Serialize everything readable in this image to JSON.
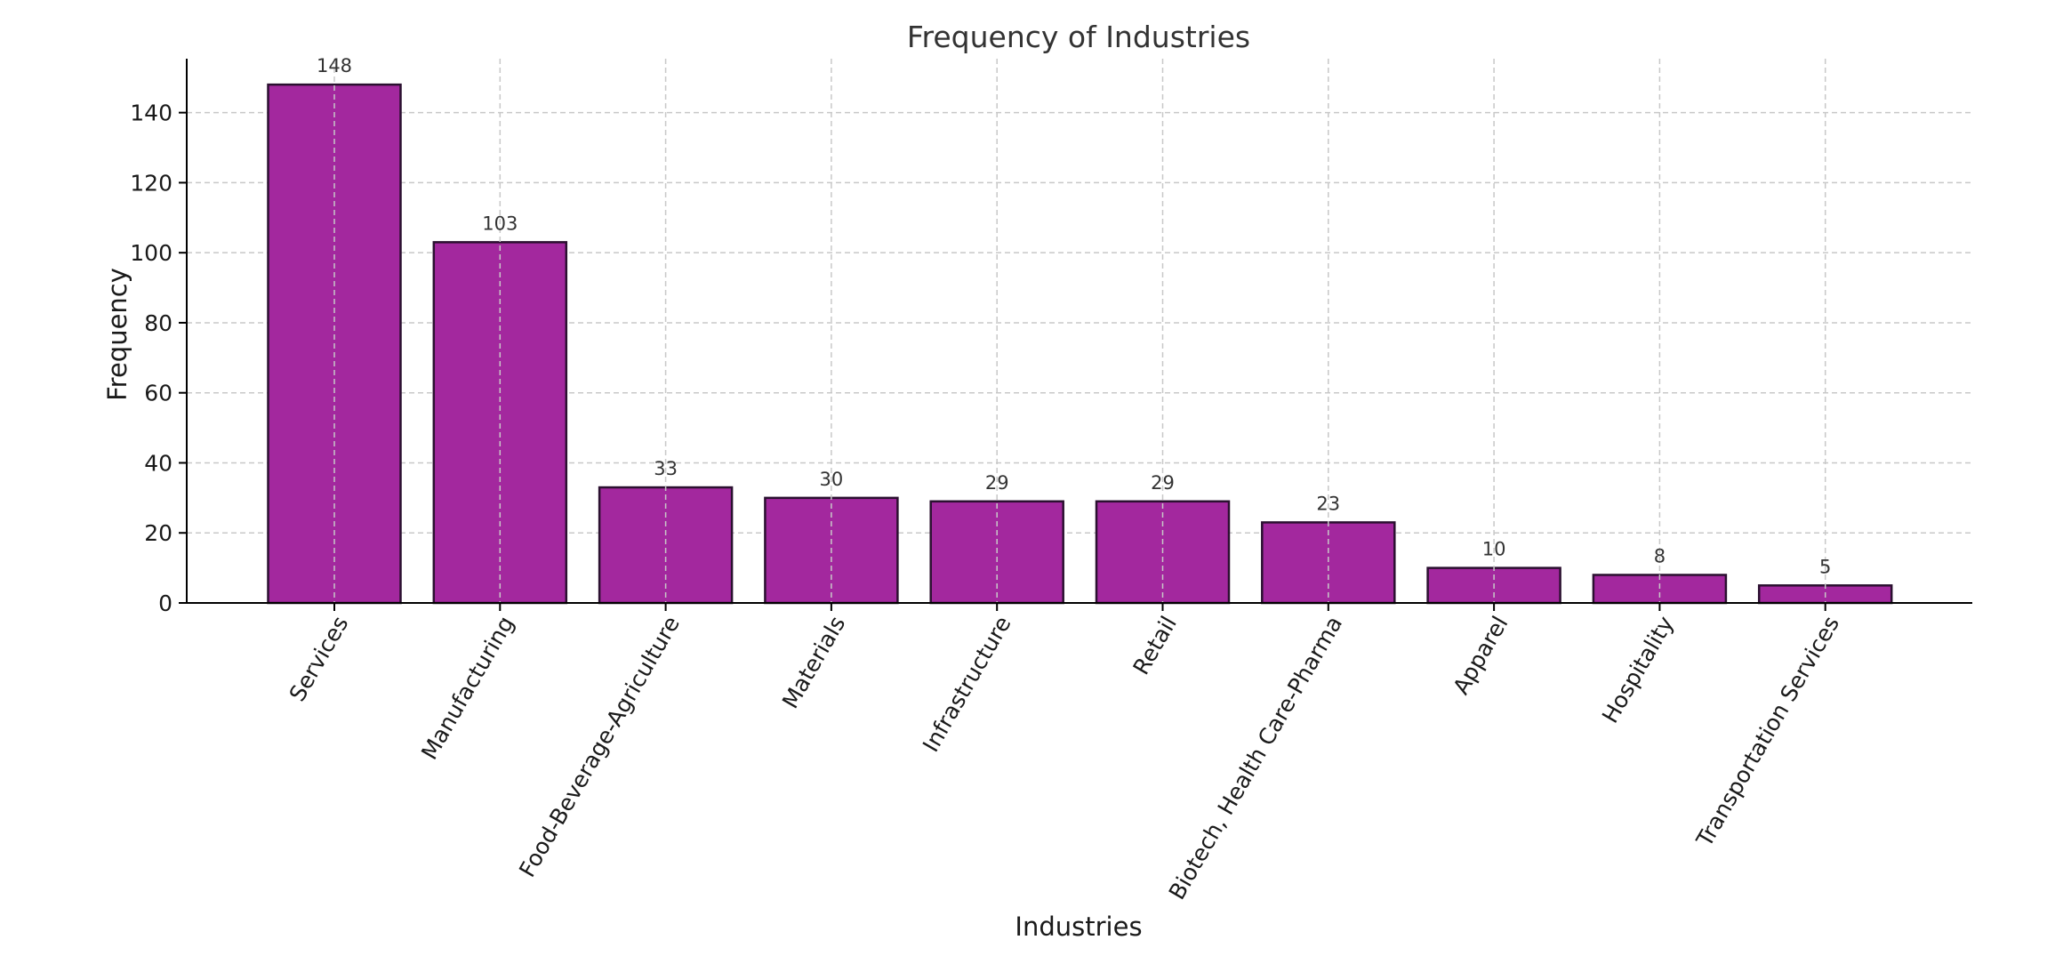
{
  "chart_data": {
    "type": "bar",
    "title": "Frequency of Industries",
    "xlabel": "Industries",
    "ylabel": "Frequency",
    "categories": [
      "Services",
      "Manufacturing",
      "Food-Beverage-Agriculture",
      "Materials",
      "Infrastructure",
      "Retail",
      "Biotech, Health Care-Pharma",
      "Apparel",
      "Hospitality",
      "Transportation Services"
    ],
    "values": [
      148,
      103,
      33,
      30,
      29,
      29,
      23,
      10,
      8,
      5
    ],
    "value_labels": [
      "148",
      "103",
      "33",
      "30",
      "29",
      "29",
      "23",
      "10",
      "8",
      "5"
    ],
    "ylim": [
      0,
      155.4
    ],
    "yticks": [
      0,
      20,
      40,
      60,
      80,
      100,
      120,
      140
    ],
    "ytick_labels": [
      "0",
      "20",
      "40",
      "60",
      "80",
      "100",
      "120",
      "140"
    ],
    "grid": true,
    "legend": "none",
    "bar_color": "#a3289e",
    "bar_edge_color": "#2b1030"
  }
}
